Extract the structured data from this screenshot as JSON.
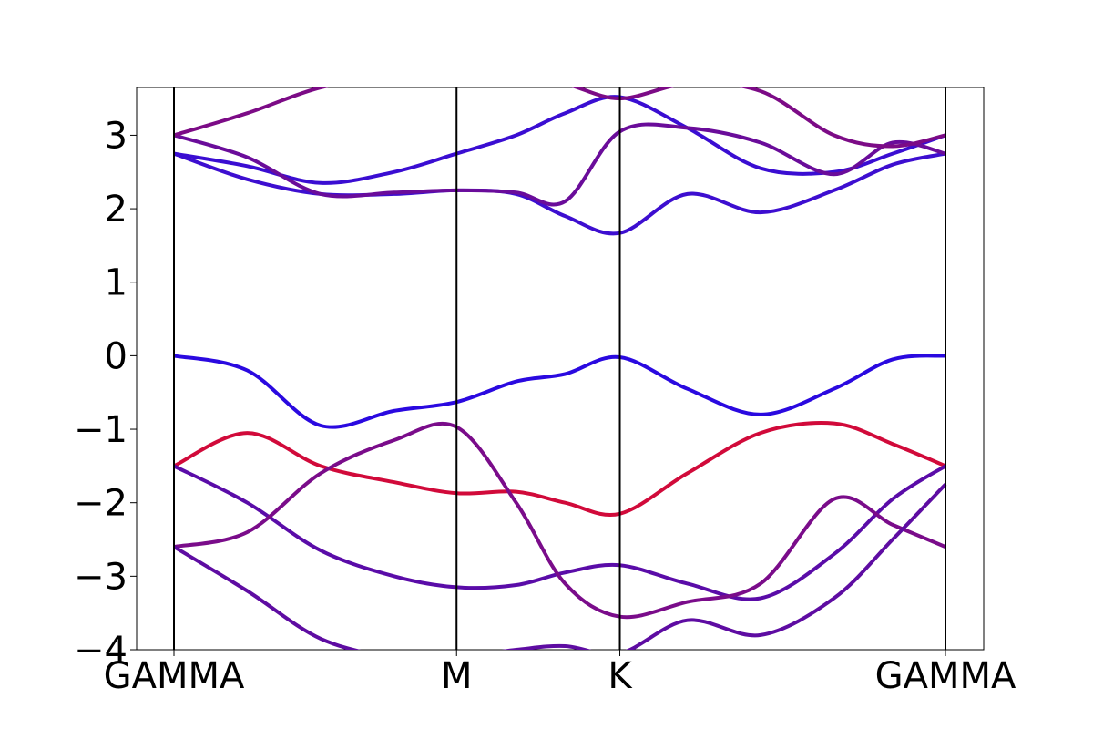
{
  "chart_data": {
    "type": "line",
    "title": "",
    "xlabel": "",
    "ylabel": "",
    "ylim": [
      -4,
      3.65
    ],
    "xlim": [
      -0.08,
      1.08
    ],
    "grid": false,
    "legend": "none",
    "x_ticks": [
      {
        "pos": 0.0,
        "label": "GAMMA"
      },
      {
        "pos": 0.578,
        "label": "M"
      },
      {
        "pos": 0.912,
        "label": "K"
      },
      {
        "pos": 1.578,
        "label": "GAMMA"
      }
    ],
    "y_ticks": [
      {
        "value": 3,
        "label": "3"
      },
      {
        "value": 2,
        "label": "2"
      },
      {
        "value": 1,
        "label": "1"
      },
      {
        "value": 0,
        "label": "0"
      },
      {
        "value": -1,
        "label": "−1"
      },
      {
        "value": -2,
        "label": "−2"
      },
      {
        "value": -3,
        "label": "−3"
      },
      {
        "value": -4,
        "label": "−4"
      }
    ],
    "k_distance": [
      0.0,
      0.15,
      0.3,
      0.45,
      0.578,
      0.7,
      0.8,
      0.912,
      1.05,
      1.2,
      1.35,
      1.47,
      1.578
    ],
    "series": [
      {
        "color": "#2a09e0",
        "values": [
          0.0,
          -0.2,
          -0.95,
          -0.75,
          -0.63,
          -0.35,
          -0.25,
          -0.02,
          -0.45,
          -0.8,
          -0.45,
          -0.05,
          0.0
        ]
      },
      {
        "color": "#d10a3a",
        "values": [
          -1.5,
          -1.05,
          -1.5,
          -1.72,
          -1.87,
          -1.85,
          -2.0,
          -2.15,
          -1.6,
          -1.05,
          -0.92,
          -1.2,
          -1.5
        ]
      },
      {
        "color": "#5a0ca8",
        "values": [
          -1.5,
          -2.0,
          -2.65,
          -3.0,
          -3.15,
          -3.12,
          -2.95,
          -2.85,
          -3.1,
          -3.3,
          -2.7,
          -1.95,
          -1.5
        ]
      },
      {
        "color": "#7a0c8a",
        "values": [
          -2.6,
          -2.4,
          -1.6,
          -1.15,
          -0.97,
          -2.0,
          -3.1,
          -3.55,
          -3.35,
          -3.1,
          -1.95,
          -2.3,
          -2.6
        ]
      },
      {
        "color": "#5e0ca2",
        "values": [
          -2.6,
          -3.2,
          -3.85,
          -4.1,
          -4.1,
          -4.0,
          -3.95,
          -4.05,
          -3.6,
          -3.8,
          -3.3,
          -2.5,
          -1.75
        ]
      },
      {
        "color": "#3d0ed0",
        "values": [
          2.75,
          2.4,
          2.2,
          2.2,
          2.25,
          2.2,
          1.9,
          1.67,
          2.2,
          1.95,
          2.25,
          2.6,
          2.75
        ]
      },
      {
        "color": "#3a0dd2",
        "values": [
          2.75,
          2.58,
          2.35,
          2.5,
          2.75,
          3.0,
          3.3,
          3.52,
          3.1,
          2.55,
          2.5,
          2.75,
          3.0
        ]
      },
      {
        "color": "#6a0c9a",
        "values": [
          3.0,
          2.7,
          2.2,
          2.22,
          2.25,
          2.22,
          2.1,
          3.05,
          3.1,
          2.9,
          2.47,
          2.9,
          2.75
        ]
      },
      {
        "color": "#7c0b86",
        "values": [
          3.0,
          3.3,
          3.65,
          3.8,
          3.9,
          3.8,
          3.7,
          3.5,
          3.7,
          3.6,
          3.0,
          2.85,
          3.0
        ]
      }
    ]
  }
}
